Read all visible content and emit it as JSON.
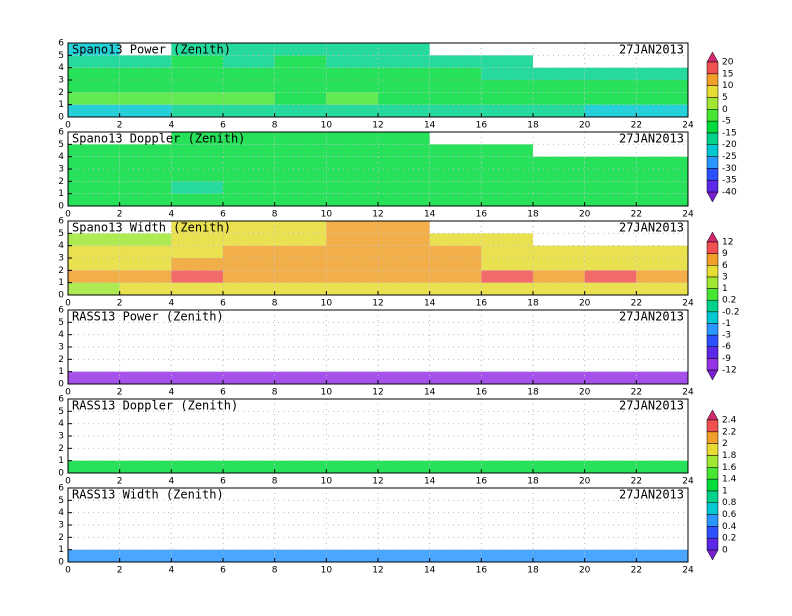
{
  "chart_data": [
    {
      "type": "heatmap",
      "title": "Spano13 Power (Zenith)",
      "date": "27JAN2013",
      "colorbar": 0,
      "grid": true,
      "xlim": [
        0,
        24
      ],
      "ylim": [
        0,
        6
      ],
      "xticks": [
        0,
        2,
        4,
        6,
        8,
        10,
        12,
        14,
        16,
        18,
        20,
        22,
        24
      ],
      "yticks": [
        0,
        1,
        2,
        3,
        4,
        5,
        6
      ],
      "x": [
        0,
        2,
        4,
        6,
        8,
        10,
        12,
        14,
        16,
        18,
        20,
        22,
        24
      ],
      "y": [
        0,
        1,
        2,
        3,
        4,
        5,
        6
      ],
      "z": [
        [
          -25,
          -25,
          -20,
          -20,
          -20,
          -20,
          -20,
          -20,
          -20,
          -20,
          -25,
          -25
        ],
        [
          -5,
          -5,
          -5,
          -5,
          -10,
          -5,
          -10,
          -10,
          -10,
          -10,
          -10,
          -10
        ],
        [
          -15,
          -15,
          -15,
          -15,
          -10,
          -15,
          -15,
          -15,
          -15,
          -15,
          -15,
          -15
        ],
        [
          -15,
          -15,
          -15,
          -15,
          -15,
          -15,
          -15,
          -15,
          -20,
          -20,
          -20,
          -20
        ],
        [
          -20,
          -20,
          -15,
          -20,
          -15,
          -20,
          -20,
          -20,
          -20,
          null,
          null,
          null
        ],
        [
          -25,
          null,
          -20,
          -20,
          -20,
          -20,
          -20,
          null,
          null,
          null,
          null,
          null
        ]
      ]
    },
    {
      "type": "heatmap",
      "title": "Spano13 Doppler (Zenith)",
      "date": "27JAN2013",
      "colorbar": 0,
      "grid": true,
      "xlim": [
        0,
        24
      ],
      "ylim": [
        0,
        6
      ],
      "xticks": [
        0,
        2,
        4,
        6,
        8,
        10,
        12,
        14,
        16,
        18,
        20,
        22,
        24
      ],
      "yticks": [
        0,
        1,
        2,
        3,
        4,
        5,
        6
      ],
      "x": [
        0,
        2,
        4,
        6,
        8,
        10,
        12,
        14,
        16,
        18,
        20,
        22,
        24
      ],
      "y": [
        0,
        1,
        2,
        3,
        4,
        5,
        6
      ],
      "z": [
        [
          -15,
          -15,
          -15,
          -15,
          -15,
          -15,
          -15,
          -15,
          -15,
          -15,
          -15,
          -15
        ],
        [
          -15,
          -15,
          -20,
          -15,
          -15,
          -15,
          -15,
          -15,
          -15,
          -15,
          -15,
          -15
        ],
        [
          -15,
          -15,
          -15,
          -15,
          -15,
          -15,
          -15,
          -15,
          -15,
          -15,
          -15,
          -15
        ],
        [
          -15,
          -15,
          -15,
          -15,
          -15,
          -15,
          -15,
          -15,
          -15,
          -15,
          -15,
          -15
        ],
        [
          -15,
          -15,
          -15,
          -15,
          -15,
          -15,
          -15,
          -15,
          -15,
          null,
          null,
          null
        ],
        [
          null,
          null,
          -15,
          -15,
          -15,
          -15,
          -15,
          null,
          null,
          null,
          null,
          null
        ]
      ]
    },
    {
      "type": "heatmap",
      "title": "Spano13 Width (Zenith)",
      "date": "27JAN2013",
      "colorbar": 1,
      "grid": true,
      "xlim": [
        0,
        24
      ],
      "ylim": [
        0,
        6
      ],
      "xticks": [
        0,
        2,
        4,
        6,
        8,
        10,
        12,
        14,
        16,
        18,
        20,
        22,
        24
      ],
      "yticks": [
        0,
        1,
        2,
        3,
        4,
        5,
        6
      ],
      "x": [
        0,
        2,
        4,
        6,
        8,
        10,
        12,
        14,
        16,
        18,
        20,
        22,
        24
      ],
      "y": [
        0,
        1,
        2,
        3,
        4,
        5,
        6
      ],
      "z": [
        [
          1,
          3,
          3,
          3,
          3,
          3,
          3,
          3,
          3,
          3,
          3,
          3
        ],
        [
          6,
          6,
          9,
          6,
          6,
          6,
          6,
          6,
          9,
          6,
          9,
          6
        ],
        [
          3,
          3,
          6,
          6,
          6,
          6,
          6,
          6,
          3,
          3,
          3,
          3
        ],
        [
          3,
          3,
          3,
          6,
          6,
          6,
          6,
          6,
          3,
          3,
          3,
          3
        ],
        [
          1,
          1,
          3,
          3,
          3,
          6,
          6,
          3,
          3,
          null,
          null,
          null
        ],
        [
          null,
          null,
          3,
          3,
          3,
          6,
          6,
          null,
          null,
          null,
          null,
          null
        ]
      ]
    },
    {
      "type": "heatmap",
      "title": "RASS13 Power (Zenith)",
      "date": "27JAN2013",
      "colorbar": 1,
      "grid": true,
      "xlim": [
        0,
        24
      ],
      "ylim": [
        0,
        6
      ],
      "xticks": [
        0,
        2,
        4,
        6,
        8,
        10,
        12,
        14,
        16,
        18,
        20,
        22,
        24
      ],
      "yticks": [
        0,
        1,
        2,
        3,
        4,
        5,
        6
      ],
      "x": [
        0,
        2,
        4,
        6,
        8,
        10,
        12,
        14,
        16,
        18,
        20,
        22,
        24
      ],
      "y": [
        0,
        1,
        2,
        3,
        4,
        5,
        6
      ],
      "z": [
        [
          -10,
          -10,
          -10,
          -10,
          -10,
          -10,
          -10,
          -10,
          -10,
          -10,
          -10,
          -10
        ],
        [
          null,
          null,
          null,
          null,
          null,
          null,
          null,
          null,
          null,
          null,
          null,
          null
        ],
        [
          null,
          null,
          null,
          null,
          null,
          null,
          null,
          null,
          null,
          null,
          null,
          null
        ],
        [
          null,
          null,
          null,
          null,
          null,
          null,
          null,
          null,
          null,
          null,
          null,
          null
        ],
        [
          null,
          null,
          null,
          null,
          null,
          null,
          null,
          null,
          null,
          null,
          null,
          null
        ],
        [
          null,
          null,
          null,
          null,
          null,
          null,
          null,
          null,
          null,
          null,
          null,
          null
        ]
      ]
    },
    {
      "type": "heatmap",
      "title": "RASS13 Doppler (Zenith)",
      "date": "27JAN2013",
      "colorbar": 2,
      "grid": true,
      "xlim": [
        0,
        24
      ],
      "ylim": [
        0,
        6
      ],
      "xticks": [
        0,
        2,
        4,
        6,
        8,
        10,
        12,
        14,
        16,
        18,
        20,
        22,
        24
      ],
      "yticks": [
        0,
        1,
        2,
        3,
        4,
        5,
        6
      ],
      "x": [
        0,
        2,
        4,
        6,
        8,
        10,
        12,
        14,
        16,
        18,
        20,
        22,
        24
      ],
      "y": [
        0,
        1,
        2,
        3,
        4,
        5,
        6
      ],
      "z": [
        [
          1.1,
          1.1,
          1.1,
          1.1,
          1.1,
          1.1,
          1.1,
          1.1,
          1.1,
          1.1,
          1.1,
          1.1
        ],
        [
          null,
          null,
          null,
          null,
          null,
          null,
          null,
          null,
          null,
          null,
          null,
          null
        ],
        [
          null,
          null,
          null,
          null,
          null,
          null,
          null,
          null,
          null,
          null,
          null,
          null
        ],
        [
          null,
          null,
          null,
          null,
          null,
          null,
          null,
          null,
          null,
          null,
          null,
          null
        ],
        [
          null,
          null,
          null,
          null,
          null,
          null,
          null,
          null,
          null,
          null,
          null,
          null
        ],
        [
          null,
          null,
          null,
          null,
          null,
          null,
          null,
          null,
          null,
          null,
          null,
          null
        ]
      ]
    },
    {
      "type": "heatmap",
      "title": "RASS13 Width (Zenith)",
      "date": "27JAN2013",
      "colorbar": 2,
      "grid": true,
      "xlim": [
        0,
        24
      ],
      "ylim": [
        0,
        6
      ],
      "xticks": [
        0,
        2,
        4,
        6,
        8,
        10,
        12,
        14,
        16,
        18,
        20,
        22,
        24
      ],
      "yticks": [
        0,
        1,
        2,
        3,
        4,
        5,
        6
      ],
      "x": [
        0,
        2,
        4,
        6,
        8,
        10,
        12,
        14,
        16,
        18,
        20,
        22,
        24
      ],
      "y": [
        0,
        1,
        2,
        3,
        4,
        5,
        6
      ],
      "z": [
        [
          0.5,
          0.5,
          0.5,
          0.5,
          0.5,
          0.5,
          0.5,
          0.5,
          0.5,
          0.5,
          0.5,
          0.5
        ],
        [
          null,
          null,
          null,
          null,
          null,
          null,
          null,
          null,
          null,
          null,
          null,
          null
        ],
        [
          null,
          null,
          null,
          null,
          null,
          null,
          null,
          null,
          null,
          null,
          null,
          null
        ],
        [
          null,
          null,
          null,
          null,
          null,
          null,
          null,
          null,
          null,
          null,
          null,
          null
        ],
        [
          null,
          null,
          null,
          null,
          null,
          null,
          null,
          null,
          null,
          null,
          null,
          null
        ],
        [
          null,
          null,
          null,
          null,
          null,
          null,
          null,
          null,
          null,
          null,
          null,
          null
        ]
      ]
    }
  ],
  "colorbars": [
    {
      "ticks": [
        -40,
        -35,
        -30,
        -25,
        -20,
        -15,
        -5,
        0,
        5,
        10,
        15,
        20
      ],
      "colors": [
        "#7a1fd2",
        "#5a28e6",
        "#2a50ff",
        "#2a96ff",
        "#00c8d2",
        "#00d28c",
        "#00dc3c",
        "#46e632",
        "#a0e632",
        "#e6dc32",
        "#f0a028",
        "#f05050",
        "#d2286e"
      ]
    },
    {
      "ticks": [
        -12,
        -9,
        -6,
        -3,
        -1,
        -0.2,
        0.2,
        1,
        3,
        6,
        9,
        12
      ],
      "colors": [
        "#7a1fd2",
        "#9632e6",
        "#5a28e6",
        "#2a50ff",
        "#2a96ff",
        "#00c8d2",
        "#00d28c",
        "#46e632",
        "#a0e632",
        "#e6dc32",
        "#f0a028",
        "#f05050",
        "#d2286e"
      ]
    },
    {
      "ticks": [
        0,
        0.2,
        0.4,
        0.6,
        0.8,
        1,
        1.4,
        1.6,
        1.8,
        2,
        2.2,
        2.4
      ],
      "colors": [
        "#7a1fd2",
        "#5a28e6",
        "#2a50ff",
        "#2a96ff",
        "#00c8d2",
        "#00d28c",
        "#00dc3c",
        "#46e632",
        "#a0e632",
        "#e6dc32",
        "#f0a028",
        "#f05050",
        "#d2286e"
      ]
    }
  ]
}
